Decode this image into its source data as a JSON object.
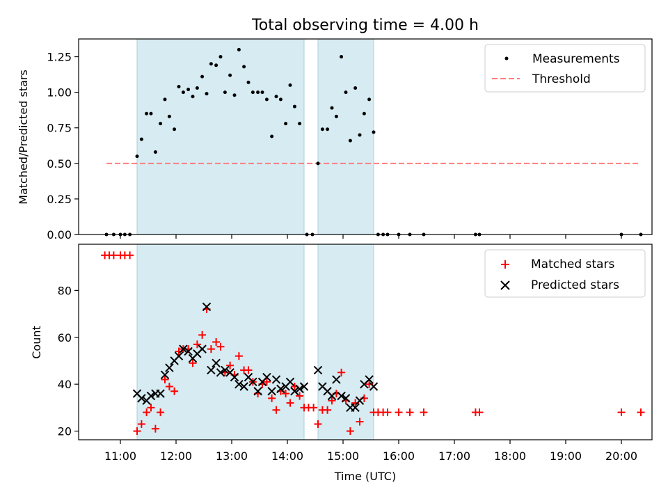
{
  "chart_data": {
    "title": "Total observing time = 4.00 h",
    "xlabel": "Time (UTC)",
    "x_ticks": [
      "11:00",
      "12:00",
      "13:00",
      "14:00",
      "15:00",
      "16:00",
      "17:00",
      "18:00",
      "19:00",
      "20:00"
    ],
    "xlim": [
      10.25,
      20.55
    ],
    "shaded_intervals": [
      [
        11.3,
        14.3
      ],
      [
        14.55,
        15.55
      ]
    ],
    "colors": {
      "shade": "#add8e6",
      "threshold": "#ff7f7f",
      "matched": "#ff0000",
      "predicted": "#000000",
      "measurement": "#000000"
    },
    "panels": [
      {
        "type": "scatter",
        "ylabel": "Matched/Predicted stars",
        "ylim": [
          0,
          1.375
        ],
        "y_ticks": [
          "0.00",
          "0.25",
          "0.50",
          "0.75",
          "1.00",
          "1.25"
        ],
        "y_tick_values": [
          0,
          0.25,
          0.5,
          0.75,
          1.0,
          1.25
        ],
        "legend": {
          "position": "upper right",
          "entries": [
            "Measurements",
            "Threshold"
          ]
        },
        "threshold": {
          "name": "Threshold",
          "y": 0.5,
          "x_range": [
            10.75,
            20.35
          ]
        },
        "series": [
          {
            "name": "Measurements",
            "points": [
              [
                10.75,
                0
              ],
              [
                10.88,
                0
              ],
              [
                11.0,
                0
              ],
              [
                11.08,
                0
              ],
              [
                11.17,
                0
              ],
              [
                11.3,
                0.55
              ],
              [
                11.38,
                0.67
              ],
              [
                11.47,
                0.85
              ],
              [
                11.55,
                0.85
              ],
              [
                11.63,
                0.58
              ],
              [
                11.72,
                0.78
              ],
              [
                11.8,
                0.95
              ],
              [
                11.88,
                0.83
              ],
              [
                11.97,
                0.74
              ],
              [
                12.05,
                1.04
              ],
              [
                12.13,
                1.0
              ],
              [
                12.22,
                1.02
              ],
              [
                12.3,
                0.97
              ],
              [
                12.38,
                1.03
              ],
              [
                12.47,
                1.11
              ],
              [
                12.55,
                0.99
              ],
              [
                12.63,
                1.2
              ],
              [
                12.72,
                1.19
              ],
              [
                12.8,
                1.25
              ],
              [
                12.88,
                1.0
              ],
              [
                12.97,
                1.12
              ],
              [
                13.05,
                0.98
              ],
              [
                13.13,
                1.3
              ],
              [
                13.22,
                1.18
              ],
              [
                13.3,
                1.07
              ],
              [
                13.38,
                1.0
              ],
              [
                13.47,
                1.0
              ],
              [
                13.55,
                1.0
              ],
              [
                13.63,
                0.95
              ],
              [
                13.72,
                0.69
              ],
              [
                13.8,
                0.97
              ],
              [
                13.88,
                0.95
              ],
              [
                13.97,
                0.78
              ],
              [
                14.05,
                1.05
              ],
              [
                14.13,
                0.9
              ],
              [
                14.22,
                0.78
              ],
              [
                14.35,
                0
              ],
              [
                14.45,
                0
              ],
              [
                14.55,
                0.5
              ],
              [
                14.63,
                0.74
              ],
              [
                14.72,
                0.74
              ],
              [
                14.8,
                0.89
              ],
              [
                14.88,
                0.83
              ],
              [
                14.97,
                1.25
              ],
              [
                15.05,
                1.0
              ],
              [
                15.13,
                0.66
              ],
              [
                15.22,
                1.03
              ],
              [
                15.3,
                0.7
              ],
              [
                15.38,
                0.85
              ],
              [
                15.47,
                0.95
              ],
              [
                15.55,
                0.72
              ],
              [
                15.63,
                0
              ],
              [
                15.72,
                0
              ],
              [
                15.8,
                0
              ],
              [
                16.0,
                0
              ],
              [
                16.2,
                0
              ],
              [
                16.45,
                0
              ],
              [
                17.38,
                0
              ],
              [
                17.45,
                0
              ],
              [
                20.0,
                0
              ],
              [
                20.35,
                0
              ]
            ]
          }
        ]
      },
      {
        "type": "scatter",
        "ylabel": "Count",
        "ylim": [
          16.3,
          99.7
        ],
        "y_ticks": [
          "20",
          "40",
          "60",
          "80"
        ],
        "y_tick_values": [
          20,
          40,
          60,
          80
        ],
        "legend": {
          "position": "upper right",
          "entries": [
            "Matched stars",
            "Predicted stars"
          ]
        },
        "series": [
          {
            "name": "Matched stars",
            "marker": "+",
            "points": [
              [
                10.72,
                95
              ],
              [
                10.8,
                95
              ],
              [
                10.88,
                95
              ],
              [
                11.0,
                95
              ],
              [
                11.08,
                95
              ],
              [
                11.17,
                95
              ],
              [
                11.3,
                20
              ],
              [
                11.38,
                23
              ],
              [
                11.47,
                28
              ],
              [
                11.55,
                30
              ],
              [
                11.63,
                21
              ],
              [
                11.72,
                28
              ],
              [
                11.8,
                42
              ],
              [
                11.88,
                39
              ],
              [
                11.97,
                37
              ],
              [
                12.05,
                54
              ],
              [
                12.13,
                55
              ],
              [
                12.22,
                55
              ],
              [
                12.3,
                49
              ],
              [
                12.38,
                57
              ],
              [
                12.47,
                61
              ],
              [
                12.55,
                72
              ],
              [
                12.63,
                55
              ],
              [
                12.72,
                58
              ],
              [
                12.8,
                56
              ],
              [
                12.88,
                45
              ],
              [
                12.97,
                48
              ],
              [
                13.05,
                44
              ],
              [
                13.13,
                52
              ],
              [
                13.22,
                46
              ],
              [
                13.3,
                46
              ],
              [
                13.38,
                41
              ],
              [
                13.47,
                36
              ],
              [
                13.55,
                40
              ],
              [
                13.63,
                41
              ],
              [
                13.72,
                34
              ],
              [
                13.8,
                29
              ],
              [
                13.88,
                37
              ],
              [
                13.97,
                36
              ],
              [
                14.05,
                32
              ],
              [
                14.13,
                39
              ],
              [
                14.22,
                35
              ],
              [
                14.3,
                30
              ],
              [
                14.38,
                30
              ],
              [
                14.47,
                30
              ],
              [
                14.55,
                23
              ],
              [
                14.63,
                29
              ],
              [
                14.72,
                29
              ],
              [
                14.8,
                33
              ],
              [
                14.88,
                36
              ],
              [
                14.97,
                45
              ],
              [
                15.05,
                33
              ],
              [
                15.13,
                20
              ],
              [
                15.22,
                32
              ],
              [
                15.3,
                24
              ],
              [
                15.38,
                34
              ],
              [
                15.47,
                40
              ],
              [
                15.55,
                28
              ],
              [
                15.63,
                28
              ],
              [
                15.72,
                28
              ],
              [
                15.8,
                28
              ],
              [
                16.0,
                28
              ],
              [
                16.2,
                28
              ],
              [
                16.45,
                28
              ],
              [
                17.38,
                28
              ],
              [
                17.45,
                28
              ],
              [
                20.0,
                28
              ],
              [
                20.35,
                28
              ]
            ]
          },
          {
            "name": "Predicted stars",
            "marker": "x",
            "points": [
              [
                11.3,
                36
              ],
              [
                11.38,
                34
              ],
              [
                11.47,
                33
              ],
              [
                11.55,
                35
              ],
              [
                11.63,
                36
              ],
              [
                11.72,
                36
              ],
              [
                11.8,
                44
              ],
              [
                11.88,
                47
              ],
              [
                11.97,
                50
              ],
              [
                12.05,
                52
              ],
              [
                12.13,
                55
              ],
              [
                12.22,
                54
              ],
              [
                12.3,
                51
              ],
              [
                12.38,
                53
              ],
              [
                12.47,
                55
              ],
              [
                12.55,
                73
              ],
              [
                12.63,
                46
              ],
              [
                12.72,
                49
              ],
              [
                12.8,
                45
              ],
              [
                12.88,
                46
              ],
              [
                12.97,
                45
              ],
              [
                13.05,
                43
              ],
              [
                13.13,
                40
              ],
              [
                13.22,
                39
              ],
              [
                13.3,
                43
              ],
              [
                13.38,
                41
              ],
              [
                13.47,
                37
              ],
              [
                13.55,
                41
              ],
              [
                13.63,
                43
              ],
              [
                13.72,
                37
              ],
              [
                13.8,
                42
              ],
              [
                13.88,
                38
              ],
              [
                13.97,
                39
              ],
              [
                14.05,
                41
              ],
              [
                14.13,
                37
              ],
              [
                14.22,
                38
              ],
              [
                14.3,
                39
              ],
              [
                14.55,
                46
              ],
              [
                14.63,
                39
              ],
              [
                14.72,
                37
              ],
              [
                14.8,
                35
              ],
              [
                14.88,
                42
              ],
              [
                14.97,
                35
              ],
              [
                15.05,
                34
              ],
              [
                15.13,
                30
              ],
              [
                15.22,
                30
              ],
              [
                15.3,
                33
              ],
              [
                15.38,
                40
              ],
              [
                15.47,
                42
              ],
              [
                15.55,
                39
              ]
            ]
          }
        ]
      }
    ]
  }
}
